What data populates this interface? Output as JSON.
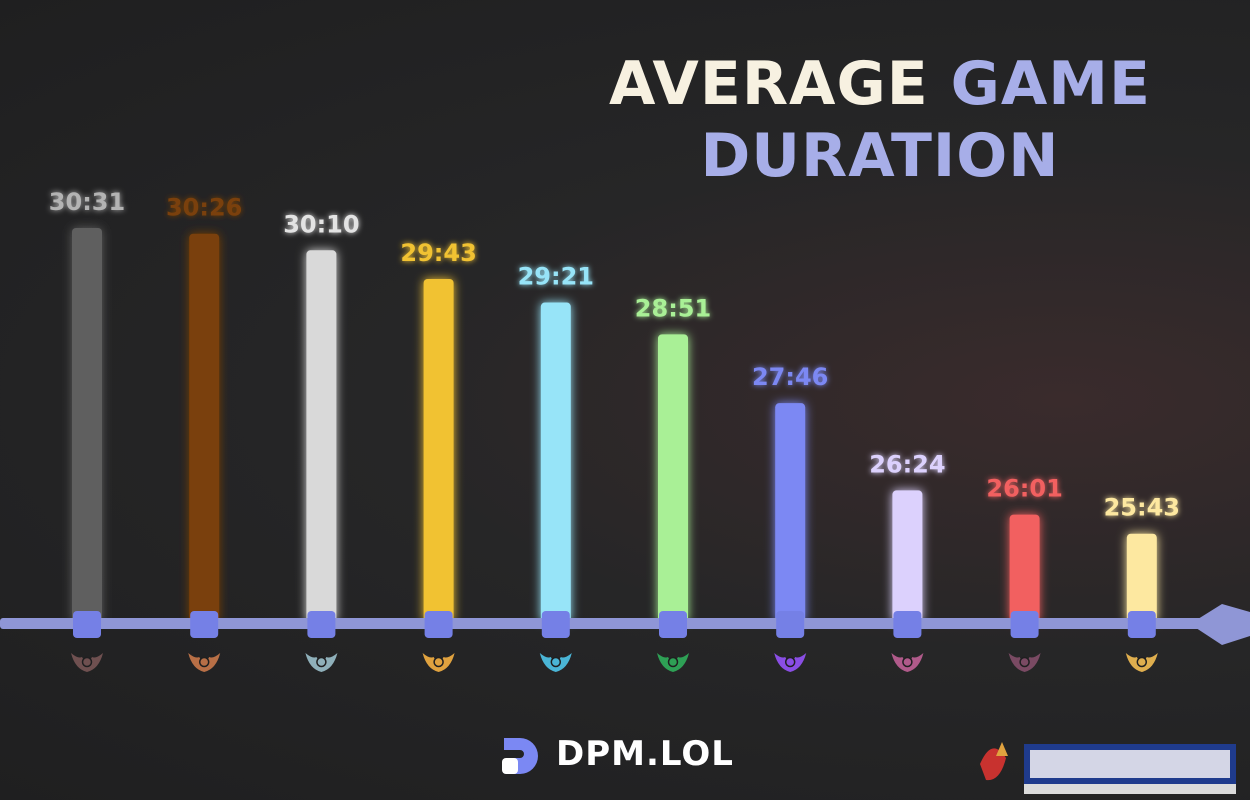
{
  "title_part1": "AVERAGE",
  "title_part2": "GAME DURATION",
  "brand_text": "DPM.LOL",
  "colors": {
    "axis": "#8f96d6",
    "marker": "#7580e6",
    "title_light": "#f7f1e1",
    "title_accent": "#a7aee8"
  },
  "chart_data": {
    "type": "bar",
    "title": "AVERAGE GAME DURATION",
    "xlabel": "",
    "ylabel": "",
    "grid": false,
    "ylim": [
      0,
      31
    ],
    "categories": [
      "iron-emblem",
      "bronze-emblem",
      "silver-emblem",
      "gold-emblem",
      "platinum-emblem",
      "emerald-emblem",
      "diamond-emblem",
      "master-emblem",
      "grandmaster-emblem",
      "challenger-emblem"
    ],
    "labels": [
      "30:31",
      "30:26",
      "30:10",
      "29:43",
      "29:21",
      "28:51",
      "27:46",
      "26:24",
      "26:01",
      "25:43"
    ],
    "values": [
      30.52,
      30.43,
      30.17,
      29.72,
      29.35,
      28.85,
      27.77,
      26.4,
      26.02,
      25.72
    ],
    "bar_colors": [
      "#5f5f5f",
      "#7a4009",
      "#d9d9d9",
      "#f1c232",
      "#97e4f8",
      "#a9f096",
      "#7b88f3",
      "#dcd1fd",
      "#f26060",
      "#fde8a0"
    ],
    "label_colors": [
      "#b3b3b3",
      "#7a4009",
      "#e3e3e3",
      "#f1c232",
      "#97e4f8",
      "#a9f096",
      "#7b88f3",
      "#dcd1fd",
      "#f26060",
      "#fde8a0"
    ],
    "emblem_colors": [
      "#6f5050",
      "#b86f46",
      "#8fb0ba",
      "#e0a23f",
      "#4ab5d6",
      "#2ea055",
      "#8a4ee4",
      "#b05a8a",
      "#7a4a63",
      "#dfae4e"
    ]
  }
}
